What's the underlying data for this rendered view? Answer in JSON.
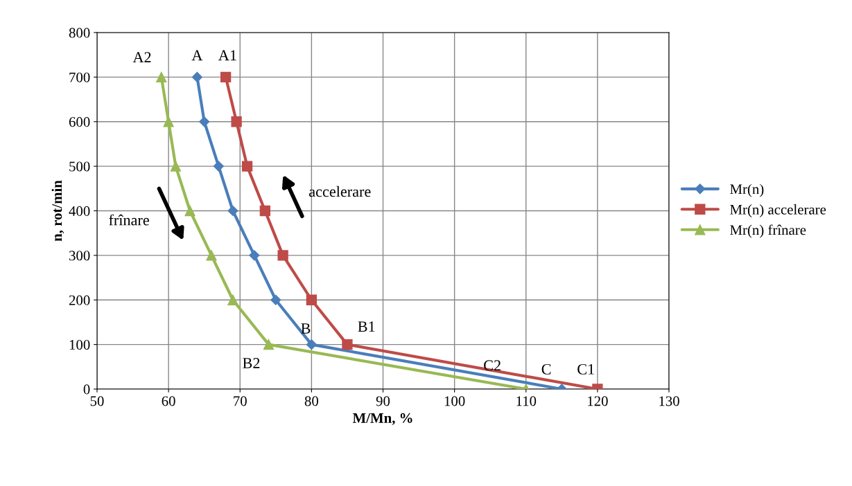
{
  "chart_data": {
    "type": "line",
    "xlabel": "M/Mn, %",
    "ylabel": "n, rot/min",
    "xlim": [
      50,
      130
    ],
    "xticks": [
      50,
      60,
      70,
      80,
      90,
      100,
      110,
      120,
      130
    ],
    "ylim": [
      0,
      800
    ],
    "yticks": [
      0,
      100,
      200,
      300,
      400,
      500,
      600,
      700,
      800
    ],
    "grid": true,
    "legend": "right",
    "line_style": "solid",
    "series": [
      {
        "name": "Mr(n)",
        "color": "#4a7ebb",
        "marker": "diamond",
        "x": [
          64,
          65,
          67,
          69,
          72,
          75,
          80,
          115
        ],
        "values": [
          700,
          600,
          500,
          400,
          300,
          200,
          100,
          0
        ]
      },
      {
        "name": "Mr(n) accelerare",
        "color": "#be4b48",
        "marker": "square",
        "x": [
          68,
          69.5,
          71,
          73.5,
          76,
          80,
          85,
          120
        ],
        "values": [
          700,
          600,
          500,
          400,
          300,
          200,
          100,
          0
        ]
      },
      {
        "name": "Mr(n) frînare",
        "color": "#98b954",
        "marker": "triangle",
        "x": [
          59,
          60,
          61,
          63,
          66,
          69,
          74,
          110
        ],
        "values": [
          700,
          600,
          500,
          400,
          300,
          200,
          100,
          0
        ]
      }
    ],
    "annotations": [
      {
        "text": "A2",
        "x": 59,
        "y": 700
      },
      {
        "text": "A",
        "x": 64,
        "y": 700
      },
      {
        "text": "A1",
        "x": 68,
        "y": 700
      },
      {
        "text": "B",
        "x": 80,
        "y": 100
      },
      {
        "text": "B1",
        "x": 85,
        "y": 100
      },
      {
        "text": "B2",
        "x": 74,
        "y": 100
      },
      {
        "text": "C2",
        "x": 110,
        "y": 0
      },
      {
        "text": "C",
        "x": 115,
        "y": 0
      },
      {
        "text": "C1",
        "x": 120,
        "y": 0
      },
      "accelerare",
      "frînare"
    ]
  }
}
